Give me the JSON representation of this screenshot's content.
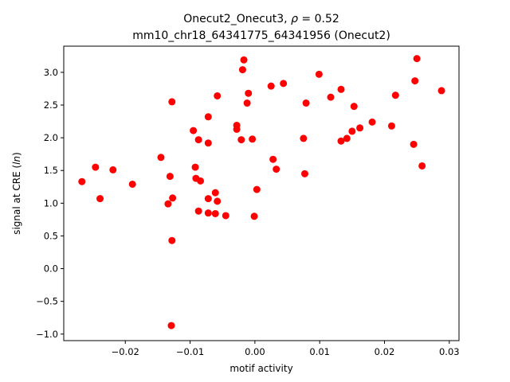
{
  "chart_data": {
    "type": "scatter",
    "title_line1_prefix": "Onecut2_Onecut3, ",
    "title_rho_symbol": "ρ",
    "title_rho_value": " = 0.52",
    "title_line2": "mm10_chr18_64341775_64341956 (Onecut2)",
    "xlabel": "motif activity",
    "ylabel_prefix": "signal at CRE (",
    "ylabel_italic": "ln",
    "ylabel_suffix": ")",
    "xlim": [
      -0.0295,
      0.0315
    ],
    "ylim": [
      -1.1,
      3.4
    ],
    "xticks": [
      -0.02,
      -0.01,
      0.0,
      0.01,
      0.02,
      0.03
    ],
    "xtick_labels": [
      "−0.02",
      "−0.01",
      "0.00",
      "0.01",
      "0.02",
      "0.03"
    ],
    "yticks": [
      -1.0,
      -0.5,
      0.0,
      0.5,
      1.0,
      1.5,
      2.0,
      2.5,
      3.0
    ],
    "ytick_labels": [
      "−1.0",
      "−0.5",
      "0.0",
      "0.5",
      "1.0",
      "1.5",
      "2.0",
      "2.5",
      "3.0"
    ],
    "marker_color": "#ff0000",
    "grid": false,
    "points": [
      {
        "x": -0.0267,
        "y": 1.33
      },
      {
        "x": -0.0246,
        "y": 1.55
      },
      {
        "x": -0.0239,
        "y": 1.07
      },
      {
        "x": -0.0219,
        "y": 1.51
      },
      {
        "x": -0.0189,
        "y": 1.29
      },
      {
        "x": -0.0145,
        "y": 1.7
      },
      {
        "x": -0.0134,
        "y": 0.99
      },
      {
        "x": -0.0131,
        "y": 1.41
      },
      {
        "x": -0.0129,
        "y": -0.87
      },
      {
        "x": -0.0128,
        "y": 2.55
      },
      {
        "x": -0.0128,
        "y": 0.43
      },
      {
        "x": -0.0127,
        "y": 1.08
      },
      {
        "x": -0.0095,
        "y": 2.11
      },
      {
        "x": -0.0092,
        "y": 1.55
      },
      {
        "x": -0.0091,
        "y": 1.38
      },
      {
        "x": -0.0087,
        "y": 1.97
      },
      {
        "x": -0.0087,
        "y": 0.88
      },
      {
        "x": -0.0084,
        "y": 1.34
      },
      {
        "x": -0.0072,
        "y": 2.32
      },
      {
        "x": -0.0072,
        "y": 1.92
      },
      {
        "x": -0.0072,
        "y": 1.07
      },
      {
        "x": -0.0072,
        "y": 0.85
      },
      {
        "x": -0.0061,
        "y": 1.16
      },
      {
        "x": -0.0061,
        "y": 0.84
      },
      {
        "x": -0.0058,
        "y": 2.64
      },
      {
        "x": -0.0058,
        "y": 1.03
      },
      {
        "x": -0.0045,
        "y": 0.81
      },
      {
        "x": -0.0028,
        "y": 2.19
      },
      {
        "x": -0.0028,
        "y": 2.13
      },
      {
        "x": -0.0021,
        "y": 1.97
      },
      {
        "x": -0.0019,
        "y": 3.04
      },
      {
        "x": -0.0017,
        "y": 3.19
      },
      {
        "x": -0.0012,
        "y": 2.53
      },
      {
        "x": -0.001,
        "y": 2.68
      },
      {
        "x": -0.0004,
        "y": 1.98
      },
      {
        "x": -0.0001,
        "y": 0.8
      },
      {
        "x": 0.0003,
        "y": 1.21
      },
      {
        "x": 0.0025,
        "y": 2.79
      },
      {
        "x": 0.0028,
        "y": 1.67
      },
      {
        "x": 0.0033,
        "y": 1.52
      },
      {
        "x": 0.0044,
        "y": 2.83
      },
      {
        "x": 0.0075,
        "y": 1.99
      },
      {
        "x": 0.0077,
        "y": 1.45
      },
      {
        "x": 0.0079,
        "y": 2.53
      },
      {
        "x": 0.0099,
        "y": 2.97
      },
      {
        "x": 0.0117,
        "y": 2.62
      },
      {
        "x": 0.0133,
        "y": 2.74
      },
      {
        "x": 0.0133,
        "y": 1.95
      },
      {
        "x": 0.0142,
        "y": 1.99
      },
      {
        "x": 0.015,
        "y": 2.1
      },
      {
        "x": 0.0153,
        "y": 2.48
      },
      {
        "x": 0.0162,
        "y": 2.15
      },
      {
        "x": 0.0181,
        "y": 2.24
      },
      {
        "x": 0.0211,
        "y": 2.18
      },
      {
        "x": 0.0217,
        "y": 2.65
      },
      {
        "x": 0.0245,
        "y": 1.9
      },
      {
        "x": 0.0247,
        "y": 2.87
      },
      {
        "x": 0.025,
        "y": 3.21
      },
      {
        "x": 0.0258,
        "y": 1.57
      },
      {
        "x": 0.0288,
        "y": 2.72
      }
    ]
  }
}
